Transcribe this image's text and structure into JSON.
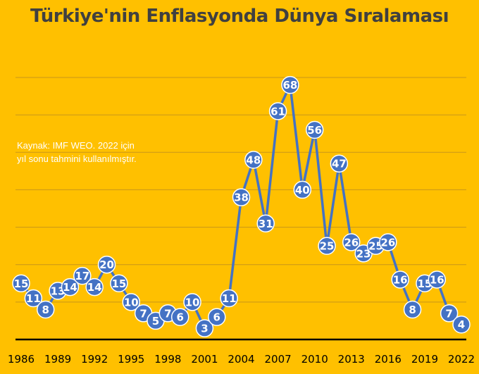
{
  "chart_data": {
    "type": "line",
    "title": "Türkiye'nin Enflasyonda Dünya Sıralaması",
    "annotation": [
      "Kaynak: IMF WEO. 2022 için",
      "yıl sonu tahmini kullanılmıştır."
    ],
    "x": [
      1986,
      1987,
      1988,
      1989,
      1990,
      1991,
      1992,
      1993,
      1994,
      1995,
      1996,
      1997,
      1998,
      1999,
      2000,
      2001,
      2002,
      2003,
      2004,
      2005,
      2006,
      2007,
      2008,
      2009,
      2010,
      2011,
      2012,
      2013,
      2014,
      2015,
      2016,
      2017,
      2018,
      2019,
      2020,
      2021,
      2022
    ],
    "x_tick_labels": [
      "1986",
      "1989",
      "1992",
      "1995",
      "1998",
      "2001",
      "2004",
      "2007",
      "2010",
      "2013",
      "2016",
      "2019",
      "2022"
    ],
    "series": [
      {
        "values": [
          15,
          11,
          8,
          13,
          14,
          17,
          14,
          20,
          15,
          10,
          7,
          5,
          7,
          6,
          10,
          3,
          6,
          11,
          38,
          48,
          31,
          61,
          68,
          40,
          56,
          25,
          47,
          26,
          23,
          25,
          26,
          16,
          8,
          15,
          16,
          7,
          4
        ]
      }
    ],
    "ylim": [
      0,
      70
    ],
    "grid": true,
    "colors": {
      "background": "#FFC000",
      "series": "#4472C4",
      "labels": "#ffffff",
      "title": "#404040"
    }
  }
}
